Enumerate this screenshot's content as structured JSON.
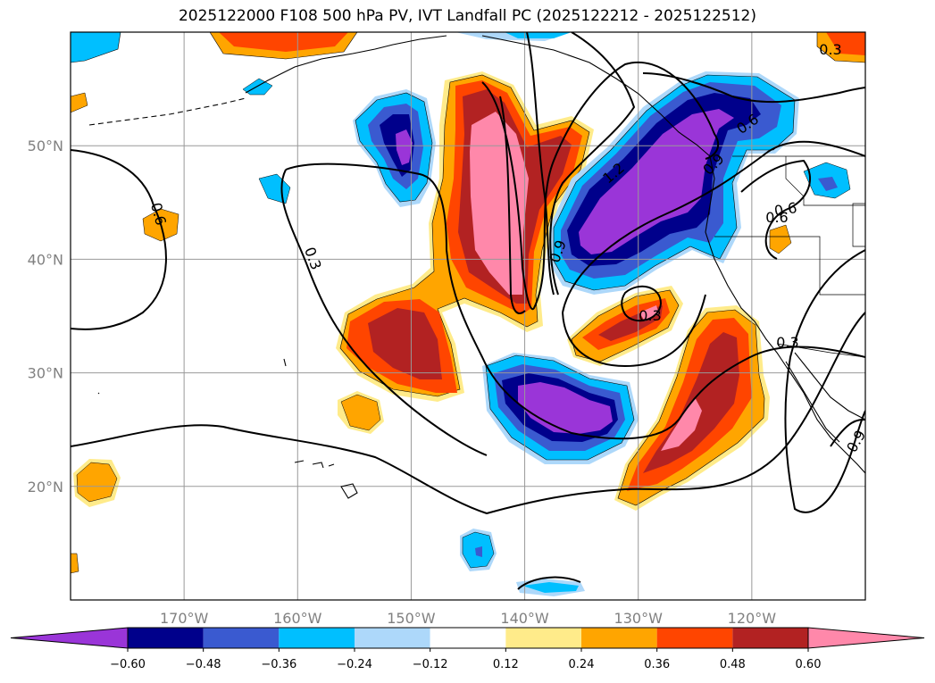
{
  "title": "2025122000 F108 500 hPa PV, IVT Landfall PC (2025122212 - 2025122512)",
  "map": {
    "lon_range": [
      -180,
      -110
    ],
    "lat_range": [
      10,
      60
    ],
    "lon_ticks": [
      {
        "value": -170,
        "label": "170°W"
      },
      {
        "value": -160,
        "label": "160°W"
      },
      {
        "value": -150,
        "label": "150°W"
      },
      {
        "value": -140,
        "label": "140°W"
      },
      {
        "value": -130,
        "label": "130°W"
      },
      {
        "value": -120,
        "label": "120°W"
      }
    ],
    "lat_ticks": [
      {
        "value": 20,
        "label": "20°N"
      },
      {
        "value": 30,
        "label": "30°N"
      },
      {
        "value": 40,
        "label": "40°N"
      },
      {
        "value": 50,
        "label": "50°N"
      }
    ],
    "gridlines": true,
    "contour_labels": [
      "0.3",
      "0.6",
      "0.9",
      "1.2",
      "0.3",
      "0.6",
      "0.3",
      "0.6",
      "0.9",
      "0.3",
      "0.6",
      "0.9"
    ]
  },
  "colorbar": {
    "orientation": "horizontal",
    "extend": "both",
    "colors": [
      "#9a35d8",
      "#00008b",
      "#3a5ad0",
      "#00bfff",
      "#add8fa",
      "#ffffff",
      "#ffeb8a",
      "#ffa500",
      "#ff4500",
      "#b22222",
      "#ff88aa"
    ],
    "tick_labels": [
      "−0.60",
      "−0.48",
      "−0.36",
      "−0.24",
      "−0.12",
      "0.12",
      "0.24",
      "0.36",
      "0.48",
      "0.60"
    ]
  }
}
